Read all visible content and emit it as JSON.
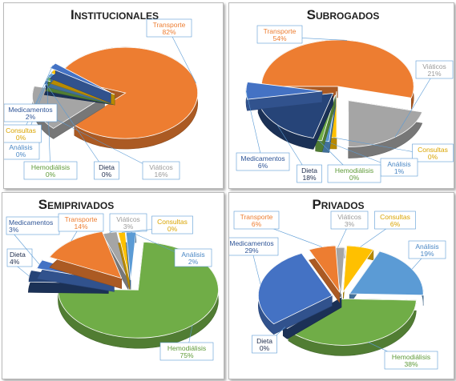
{
  "colors": {
    "Transporte": "#ed7d31",
    "Viáticos": "#a5a5a5",
    "Consultas": "#ffc000",
    "Análisis": "#5b9bd5",
    "Hemodiálisis": "#70ad47",
    "Dieta": "#264478",
    "Medicamentos": "#4472c4"
  },
  "label_colors": {
    "Transporte": "#ed7d31",
    "Viáticos": "#9a9a9a",
    "Consultas": "#d9a400",
    "Análisis": "#4a87c4",
    "Hemodiálisis": "#5e9a38",
    "Dieta": "#1f2d4d",
    "Medicamentos": "#2f5597"
  },
  "chart_data": [
    {
      "type": "pie",
      "title": "Institucionales",
      "unit": "%",
      "categories": [
        "Transporte",
        "Viáticos",
        "Dieta",
        "Hemodiálisis",
        "Análisis",
        "Consultas",
        "Medicamentos"
      ],
      "values": [
        82,
        16,
        0,
        0,
        0,
        0,
        2
      ],
      "labels": [
        "82%",
        "16%",
        "0%",
        "0%",
        "0%",
        "0%",
        "2%"
      ]
    },
    {
      "type": "pie",
      "title": "Subrogados",
      "unit": "%",
      "categories": [
        "Transporte",
        "Viáticos",
        "Consultas",
        "Análisis",
        "Hemodiálisis",
        "Dieta",
        "Medicamentos"
      ],
      "values": [
        54,
        21,
        0,
        1,
        0,
        18,
        6
      ],
      "labels": [
        "54%",
        "21%",
        "0%",
        "1%",
        "0%",
        "18%",
        "6%"
      ]
    },
    {
      "type": "pie",
      "title": "Semiprivados",
      "unit": "%",
      "categories": [
        "Viáticos",
        "Consultas",
        "Análisis",
        "Hemodiálisis",
        "Dieta",
        "Medicamentos",
        "Transporte"
      ],
      "values": [
        3,
        0,
        2,
        75,
        4,
        3,
        14
      ],
      "labels": [
        "3%",
        "0%",
        "2%",
        "75%",
        "4%",
        "3%",
        "14%"
      ]
    },
    {
      "type": "pie",
      "title": "Privados",
      "unit": "%",
      "categories": [
        "Viáticos",
        "Consultas",
        "Análisis",
        "Hemodiálisis",
        "Dieta",
        "Medicamentos",
        "Transporte"
      ],
      "values": [
        3,
        6,
        19,
        38,
        0,
        29,
        6
      ],
      "labels": [
        "3%",
        "6%",
        "19%",
        "38%",
        "0%",
        "29%",
        "6%"
      ]
    }
  ]
}
